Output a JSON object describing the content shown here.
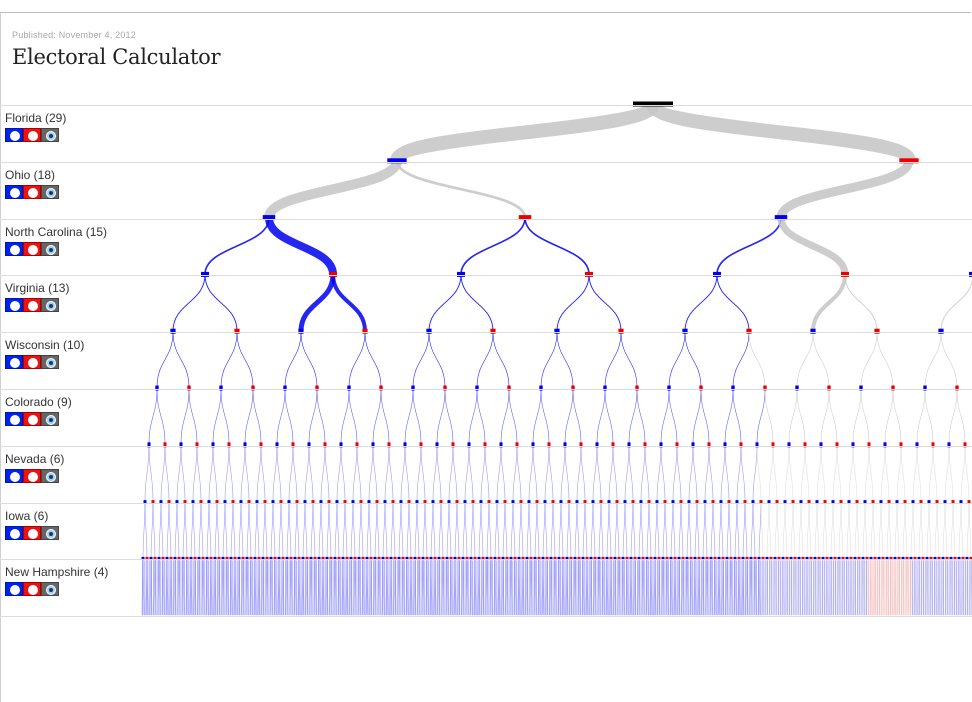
{
  "header": {
    "published": "Published: November 4, 2012",
    "title": "Electoral Calculator"
  },
  "states": [
    {
      "label": "Florida (29)"
    },
    {
      "label": "Ohio (18)"
    },
    {
      "label": "North Carolina (15)"
    },
    {
      "label": "Virginia (13)"
    },
    {
      "label": "Wisconsin (10)"
    },
    {
      "label": "Colorado (9)"
    },
    {
      "label": "Nevada (6)"
    },
    {
      "label": "Iowa (6)"
    },
    {
      "label": "New Hampshire (4)"
    }
  ],
  "toggle_icons": [
    "democrat-icon",
    "republican-icon",
    "tossup-icon"
  ],
  "colors": {
    "democrat": "#0000ee",
    "republican": "#ee0000",
    "undecided": "#c4c4c4",
    "root": "#000000"
  }
}
